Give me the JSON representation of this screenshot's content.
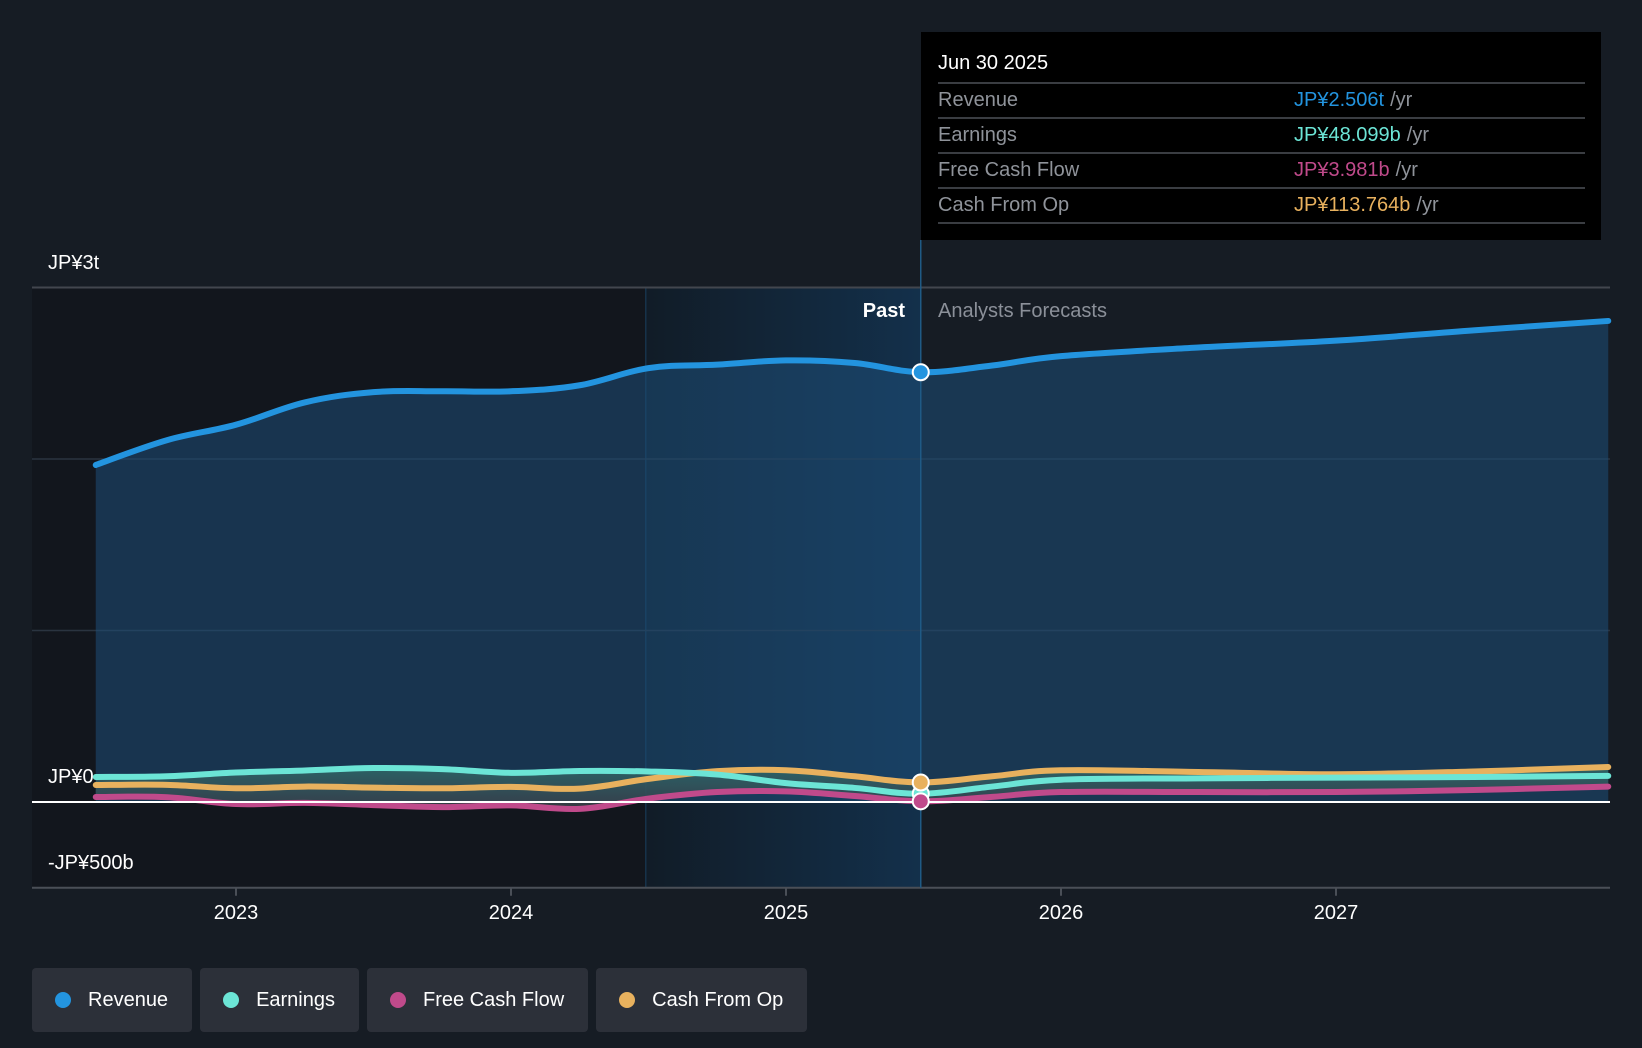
{
  "tooltip": {
    "date": "Jun 30 2025",
    "rows": [
      {
        "name": "Revenue",
        "value": "JP¥2.506t",
        "unit": "/yr",
        "color": "#2394df"
      },
      {
        "name": "Earnings",
        "value": "JP¥48.099b",
        "unit": "/yr",
        "color": "#6ce5d6"
      },
      {
        "name": "Free Cash Flow",
        "value": "JP¥3.981b",
        "unit": "/yr",
        "color": "#c04a8b"
      },
      {
        "name": "Cash From Op",
        "value": "JP¥113.764b",
        "unit": "/yr",
        "color": "#e8b15e"
      }
    ]
  },
  "regions": {
    "past_label": "Past",
    "forecast_label": "Analysts Forecasts"
  },
  "legend": [
    {
      "label": "Revenue",
      "color": "#2394df"
    },
    {
      "label": "Earnings",
      "color": "#6ce5d6"
    },
    {
      "label": "Free Cash Flow",
      "color": "#c04a8b"
    },
    {
      "label": "Cash From Op",
      "color": "#e8b15e"
    }
  ],
  "chart_data": {
    "type": "line",
    "title": "",
    "xlabel": "",
    "ylabel": "",
    "units": "JP¥ billions (annual)",
    "y_tick_labels": [
      {
        "value": 3000,
        "label": "JP¥3t"
      },
      {
        "value": 0,
        "label": "JP¥0"
      },
      {
        "value": -500,
        "label": "-JP¥500b"
      }
    ],
    "ylim": [
      -500,
      3000
    ],
    "y_gridlines": [
      3000,
      2000,
      1000,
      0
    ],
    "x_tick_labels": [
      {
        "value": 2023,
        "label": "2023"
      },
      {
        "value": 2024,
        "label": "2024"
      },
      {
        "value": 2025,
        "label": "2025"
      },
      {
        "value": 2026,
        "label": "2026"
      },
      {
        "value": 2027,
        "label": "2027"
      }
    ],
    "xlim": [
      2021.74,
      2028.0
    ],
    "past_end": 2025.49,
    "highlight_start": 2024.49,
    "grid": true,
    "legend_position": "bottom-left",
    "series": [
      {
        "name": "Revenue",
        "color": "#2394df",
        "fill": true,
        "points": [
          [
            2022.49,
            1965
          ],
          [
            2022.75,
            2110
          ],
          [
            2023.0,
            2200
          ],
          [
            2023.25,
            2330
          ],
          [
            2023.5,
            2390
          ],
          [
            2023.75,
            2395
          ],
          [
            2024.0,
            2395
          ],
          [
            2024.25,
            2430
          ],
          [
            2024.5,
            2530
          ],
          [
            2024.75,
            2550
          ],
          [
            2025.0,
            2575
          ],
          [
            2025.25,
            2560
          ],
          [
            2025.49,
            2506
          ],
          [
            2025.75,
            2545
          ],
          [
            2026.0,
            2600
          ],
          [
            2026.5,
            2650
          ],
          [
            2027.0,
            2690
          ],
          [
            2027.5,
            2750
          ],
          [
            2027.99,
            2805
          ]
        ]
      },
      {
        "name": "Earnings",
        "color": "#6ce5d6",
        "fill": false,
        "points": [
          [
            2022.49,
            146
          ],
          [
            2022.75,
            150
          ],
          [
            2023.0,
            172
          ],
          [
            2023.25,
            184
          ],
          [
            2023.5,
            198
          ],
          [
            2023.75,
            192
          ],
          [
            2024.0,
            170
          ],
          [
            2024.25,
            181
          ],
          [
            2024.5,
            178
          ],
          [
            2024.75,
            160
          ],
          [
            2025.0,
            110
          ],
          [
            2025.25,
            82
          ],
          [
            2025.49,
            48.1
          ],
          [
            2025.75,
            90
          ],
          [
            2026.0,
            130
          ],
          [
            2026.5,
            138
          ],
          [
            2027.0,
            142
          ],
          [
            2027.5,
            146
          ],
          [
            2027.99,
            152
          ]
        ]
      },
      {
        "name": "Free Cash Flow",
        "color": "#c04a8b",
        "fill": false,
        "points": [
          [
            2022.49,
            29
          ],
          [
            2022.75,
            28
          ],
          [
            2023.0,
            -12
          ],
          [
            2023.25,
            -5
          ],
          [
            2023.5,
            -18
          ],
          [
            2023.75,
            -30
          ],
          [
            2024.0,
            -20
          ],
          [
            2024.25,
            -40
          ],
          [
            2024.5,
            20
          ],
          [
            2024.75,
            58
          ],
          [
            2025.0,
            62
          ],
          [
            2025.25,
            35
          ],
          [
            2025.49,
            3.98
          ],
          [
            2025.75,
            30
          ],
          [
            2026.0,
            58
          ],
          [
            2026.5,
            58
          ],
          [
            2027.0,
            58
          ],
          [
            2027.5,
            70
          ],
          [
            2027.99,
            90
          ]
        ]
      },
      {
        "name": "Cash From Op",
        "color": "#e8b15e",
        "fill": false,
        "points": [
          [
            2022.49,
            99
          ],
          [
            2022.75,
            100
          ],
          [
            2023.0,
            80
          ],
          [
            2023.25,
            90
          ],
          [
            2023.5,
            84
          ],
          [
            2023.75,
            80
          ],
          [
            2024.0,
            88
          ],
          [
            2024.25,
            78
          ],
          [
            2024.5,
            135
          ],
          [
            2024.75,
            180
          ],
          [
            2025.0,
            185
          ],
          [
            2025.25,
            150
          ],
          [
            2025.49,
            113.8
          ],
          [
            2025.75,
            150
          ],
          [
            2026.0,
            185
          ],
          [
            2026.5,
            175
          ],
          [
            2027.0,
            162
          ],
          [
            2027.5,
            178
          ],
          [
            2027.99,
            204
          ]
        ]
      }
    ]
  }
}
